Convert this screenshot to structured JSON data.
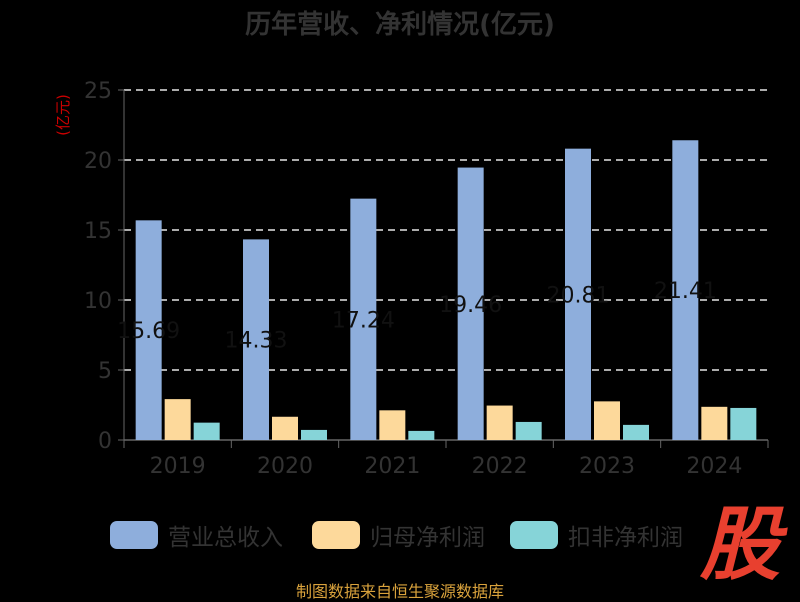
{
  "chart_data": {
    "type": "bar",
    "title": "历年营收、净利情况(亿元)",
    "ylabel": "(亿元)",
    "xlabel": "",
    "ylim": [
      0,
      25
    ],
    "yticks": [
      0,
      5,
      10,
      15,
      20,
      25
    ],
    "grid": true,
    "legend_position": "bottom",
    "categories": [
      "2019",
      "2020",
      "2021",
      "2022",
      "2023",
      "2024"
    ],
    "series": [
      {
        "name": "营业总收入",
        "color": "#8eaedc",
        "values": [
          15.69,
          14.33,
          17.24,
          19.46,
          20.81,
          21.41
        ],
        "labels": [
          "15.69",
          "14.33",
          "17.24",
          "19.46",
          "20.81",
          "21.41"
        ]
      },
      {
        "name": "归母净利润",
        "color": "#fdd99b",
        "values": [
          2.92,
          1.66,
          2.12,
          2.46,
          2.76,
          2.37
        ]
      },
      {
        "name": "扣非净利润",
        "color": "#86d4d8",
        "values": [
          1.24,
          0.72,
          0.65,
          1.29,
          1.08,
          2.29
        ]
      }
    ]
  },
  "footer": "制图数据来自恒生聚源数据库",
  "watermark": "股"
}
